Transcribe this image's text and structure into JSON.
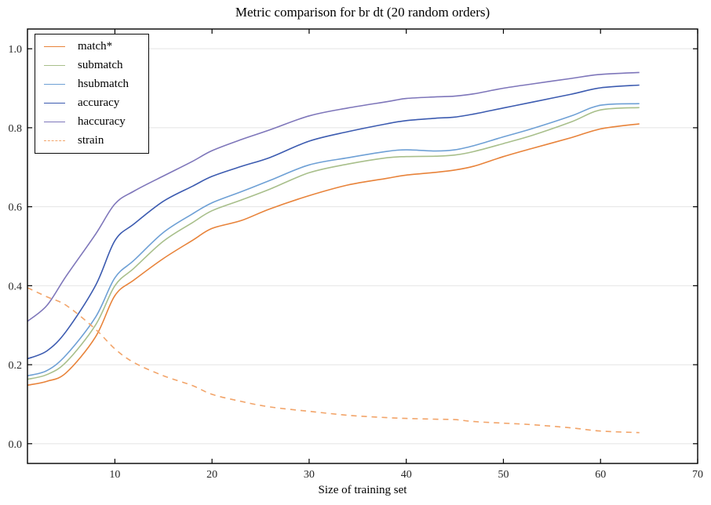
{
  "chart_data": {
    "type": "line",
    "title": "Metric comparison for br dt (20 random orders)",
    "xlabel": "Size of training set",
    "ylabel": "",
    "xlim": [
      1,
      70
    ],
    "ylim": [
      -0.05,
      1.05
    ],
    "xticks": [
      10,
      20,
      30,
      40,
      50,
      60,
      70
    ],
    "xtick_labels": [
      "10",
      "20",
      "30",
      "40",
      "50",
      "60",
      "70"
    ],
    "yticks": [
      0.0,
      0.2,
      0.4,
      0.6,
      0.8,
      1.0
    ],
    "ytick_labels": [
      "0.0",
      "0.2",
      "0.4",
      "0.6",
      "0.8",
      "1.0"
    ],
    "grid": "horizontal",
    "legend_position": "upper-left",
    "x": [
      1,
      3,
      5,
      8,
      10,
      12,
      15,
      18,
      20,
      23,
      26,
      30,
      34,
      38,
      40,
      43,
      45,
      47,
      50,
      53,
      57,
      60,
      64
    ],
    "series": [
      {
        "name": "match*",
        "color": "#e8833a",
        "style": "solid",
        "values": [
          0.148,
          0.158,
          0.18,
          0.27,
          0.375,
          0.415,
          0.469,
          0.515,
          0.545,
          0.565,
          0.595,
          0.628,
          0.655,
          0.672,
          0.68,
          0.687,
          0.693,
          0.703,
          0.727,
          0.748,
          0.775,
          0.797,
          0.81
        ]
      },
      {
        "name": "submatch",
        "color": "#a8bf8b",
        "style": "solid",
        "values": [
          0.163,
          0.175,
          0.207,
          0.3,
          0.4,
          0.445,
          0.513,
          0.56,
          0.59,
          0.617,
          0.645,
          0.686,
          0.708,
          0.724,
          0.727,
          0.728,
          0.731,
          0.74,
          0.76,
          0.781,
          0.815,
          0.845,
          0.851
        ]
      },
      {
        "name": "hsubmatch",
        "color": "#6ea0d5",
        "style": "solid",
        "values": [
          0.172,
          0.185,
          0.225,
          0.32,
          0.42,
          0.465,
          0.535,
          0.582,
          0.61,
          0.638,
          0.667,
          0.706,
          0.724,
          0.74,
          0.744,
          0.741,
          0.744,
          0.755,
          0.777,
          0.798,
          0.83,
          0.857,
          0.861
        ]
      },
      {
        "name": "accuracy",
        "color": "#3c5bb0",
        "style": "solid",
        "values": [
          0.215,
          0.235,
          0.285,
          0.4,
          0.514,
          0.557,
          0.614,
          0.652,
          0.677,
          0.702,
          0.725,
          0.766,
          0.79,
          0.81,
          0.818,
          0.824,
          0.827,
          0.835,
          0.85,
          0.865,
          0.885,
          0.901,
          0.908
        ]
      },
      {
        "name": "haccuracy",
        "color": "#7e76ba",
        "style": "solid",
        "values": [
          0.31,
          0.35,
          0.425,
          0.53,
          0.607,
          0.64,
          0.678,
          0.715,
          0.742,
          0.77,
          0.795,
          0.83,
          0.85,
          0.866,
          0.874,
          0.878,
          0.88,
          0.886,
          0.9,
          0.911,
          0.925,
          0.935,
          0.94
        ]
      },
      {
        "name": "strain",
        "color": "#f2a469",
        "style": "dashed",
        "values": [
          0.395,
          0.372,
          0.35,
          0.29,
          0.24,
          0.205,
          0.172,
          0.147,
          0.125,
          0.107,
          0.093,
          0.082,
          0.072,
          0.066,
          0.064,
          0.062,
          0.061,
          0.056,
          0.052,
          0.048,
          0.04,
          0.032,
          0.028
        ]
      }
    ],
    "colors": {
      "grid": "#e4e4e4",
      "axis": "#000000",
      "tick_label": "#262626",
      "background": "#ffffff"
    }
  }
}
